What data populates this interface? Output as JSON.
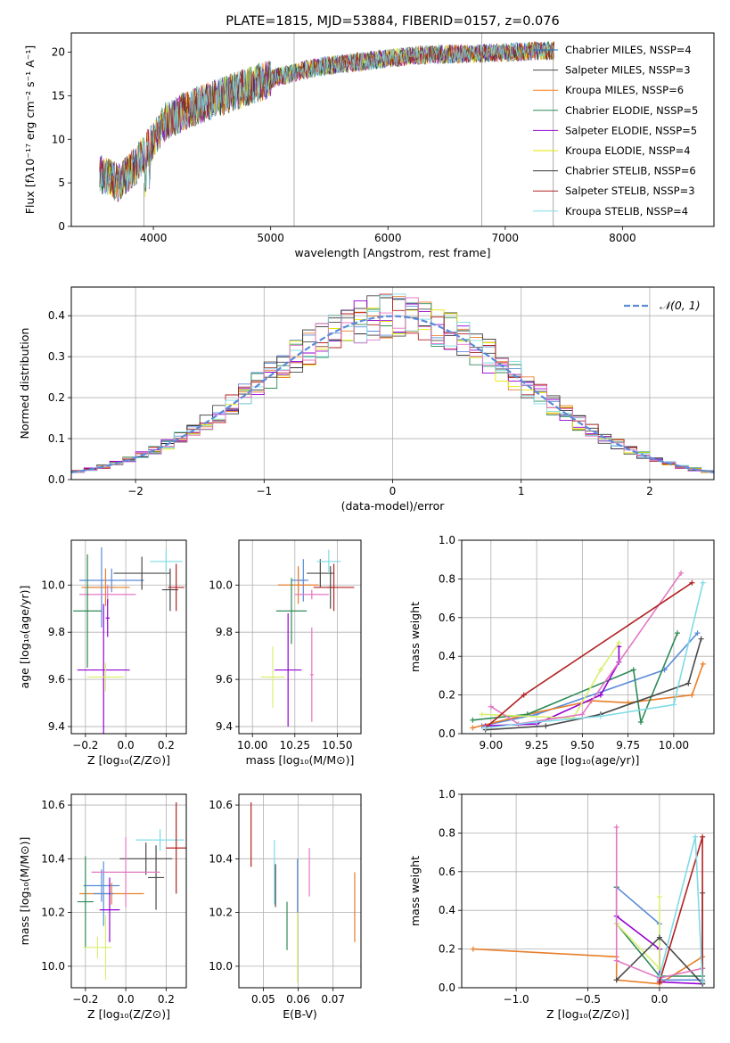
{
  "chart_data": [
    {
      "type": "line",
      "title": "PLATE=1815, MJD=53884, FIBERID=0157, z=0.076",
      "xlabel": "wavelength [Angstrom, rest frame]",
      "ylabel": "Flux [fλ10⁻¹⁷ erg cm⁻² s⁻¹ A⁻¹]",
      "xlim": [
        3300,
        8780
      ],
      "ylim": [
        0,
        22.2
      ],
      "xticks": [
        4000,
        5000,
        6000,
        7000,
        8000
      ],
      "yticks": [
        0,
        5,
        10,
        15,
        20
      ],
      "grid": false,
      "legend_position": "top-right",
      "series": [
        {
          "name": "Chabrier MILES, N_SSP=4",
          "color": "#1f77b4"
        },
        {
          "name": "Salpeter MILES, N_SSP=3",
          "color": "#4a4a4a"
        },
        {
          "name": "Kroupa MILES, N_SSP=6",
          "color": "#ff7f0e"
        },
        {
          "name": "Chabrier ELODIE, N_SSP=5",
          "color": "#2e8b57"
        },
        {
          "name": "Salpeter ELODIE, N_SSP=5",
          "color": "#9400d3"
        },
        {
          "name": "Kroupa ELODIE, N_SSP=4",
          "color": "#e6e600"
        },
        {
          "name": "Chabrier STELIB, N_SSP=6",
          "color": "#333333"
        },
        {
          "name": "Salpeter STELIB, N_SSP=3",
          "color": "#b22222"
        },
        {
          "name": "Kroupa STELIB, N_SSP=4",
          "color": "#7fdbe6"
        }
      ],
      "continuum": {
        "x": [
          3550,
          3700,
          3850,
          3950,
          4100,
          4300,
          4500,
          4700,
          4900,
          5100,
          5400,
          5700,
          6000,
          6300,
          6600,
          6900,
          7200,
          7420
        ],
        "y": [
          6,
          5,
          7,
          9,
          12,
          13.5,
          14.5,
          15.5,
          16.5,
          17.3,
          18.3,
          18.8,
          19.3,
          19.7,
          19.8,
          19.9,
          20.1,
          20.2
        ]
      }
    },
    {
      "type": "line",
      "xlabel": "(data-model)/error",
      "ylabel": "Normed distribution",
      "xlim": [
        -2.5,
        2.5
      ],
      "ylim": [
        0,
        0.47
      ],
      "xticks": [
        -2,
        -1,
        0,
        1,
        2
      ],
      "yticks": [
        0.0,
        0.1,
        0.2,
        0.3,
        0.4
      ],
      "grid": true,
      "legend_position": "top-right",
      "legend": "𝒩(0, 1)",
      "gaussian": {
        "mean": 0,
        "sigma": 1,
        "color": "#5b8bd9"
      }
    },
    {
      "type": "scatter",
      "xlabel": "Z [log₁₀(Z/Z⊙)]",
      "ylabel": "age  [log₁₀(age/yr)]",
      "xlim": [
        -0.27,
        0.3
      ],
      "ylim": [
        9.37,
        10.19
      ],
      "xticks": [
        -0.2,
        0.0,
        0.2
      ],
      "yticks": [
        9.4,
        9.6,
        9.8,
        10.0
      ],
      "grid": true,
      "points": [
        {
          "x": -0.07,
          "y": 10.02,
          "xerr": 0.16,
          "yerr": 0.05,
          "color": "#5b8bd9"
        },
        {
          "x": -0.12,
          "y": 9.99,
          "xerr": 0.07,
          "yerr": 0.17,
          "color": "#5b8bd9"
        },
        {
          "x": -0.1,
          "y": 9.99,
          "xerr": 0.12,
          "yerr": 0.08,
          "color": "#e87f2a"
        },
        {
          "x": 0.08,
          "y": 10.05,
          "xerr": 0.14,
          "yerr": 0.07,
          "color": "#4a4a4a"
        },
        {
          "x": 0.2,
          "y": 10.1,
          "xerr": 0.08,
          "yerr": 0.05,
          "color": "#7fdbe6"
        },
        {
          "x": -0.09,
          "y": 9.96,
          "xerr": 0.14,
          "yerr": 0.04,
          "color": "#e377c2"
        },
        {
          "x": 0.22,
          "y": 9.98,
          "xerr": 0.04,
          "yerr": 0.09,
          "color": "#4a4a4a"
        },
        {
          "x": 0.25,
          "y": 9.99,
          "xerr": 0.04,
          "yerr": 0.1,
          "color": "#b22222"
        },
        {
          "x": -0.19,
          "y": 9.89,
          "xerr": 0.07,
          "yerr": 0.24,
          "color": "#2e8b57"
        },
        {
          "x": -0.09,
          "y": 9.86,
          "xerr": 0.01,
          "yerr": 0.08,
          "color": "#9400d3"
        },
        {
          "x": -0.11,
          "y": 9.64,
          "xerr": 0.13,
          "yerr": 0.28,
          "color": "#9400d3"
        },
        {
          "x": -0.1,
          "y": 9.61,
          "xerr": 0.09,
          "yerr": 0.06,
          "color": "#d8f070"
        }
      ]
    },
    {
      "type": "scatter",
      "xlabel": "mass [log₁₀(M/M⊙)]",
      "ylabel": "",
      "xlim": [
        9.92,
        10.64
      ],
      "ylim": [
        9.37,
        10.19
      ],
      "xticks": [
        10.0,
        10.25,
        10.5
      ],
      "yticks": [
        9.4,
        9.6,
        9.8,
        10.0
      ],
      "grid": true,
      "points": [
        {
          "x": 10.27,
          "y": 10.02,
          "xerr": 0.04,
          "yerr": 0.05,
          "color": "#5b8bd9"
        },
        {
          "x": 10.3,
          "y": 10.02,
          "xerr": 0.03,
          "yerr": 0.09,
          "color": "#5b8bd9"
        },
        {
          "x": 10.27,
          "y": 10.0,
          "xerr": 0.12,
          "yerr": 0.08,
          "color": "#e87f2a"
        },
        {
          "x": 10.4,
          "y": 10.05,
          "xerr": 0.08,
          "yerr": 0.06,
          "color": "#4a4a4a"
        },
        {
          "x": 10.45,
          "y": 10.1,
          "xerr": 0.07,
          "yerr": 0.05,
          "color": "#7fdbe6"
        },
        {
          "x": 10.35,
          "y": 9.96,
          "xerr": 0.1,
          "yerr": 0.02,
          "color": "#e377c2"
        },
        {
          "x": 10.46,
          "y": 9.99,
          "xerr": 0.02,
          "yerr": 0.09,
          "color": "#4a4a4a"
        },
        {
          "x": 10.48,
          "y": 9.99,
          "xerr": 0.12,
          "yerr": 0.1,
          "color": "#b22222"
        },
        {
          "x": 10.23,
          "y": 9.89,
          "xerr": 0.09,
          "yerr": 0.14,
          "color": "#2e8b57"
        },
        {
          "x": 10.21,
          "y": 9.64,
          "xerr": 0.08,
          "yerr": 0.24,
          "color": "#9400d3"
        },
        {
          "x": 10.12,
          "y": 9.61,
          "xerr": 0.07,
          "yerr": 0.13,
          "color": "#d8f070"
        },
        {
          "x": 10.35,
          "y": 9.62,
          "xerr": 0.01,
          "yerr": 0.2,
          "color": "#e377c2"
        }
      ]
    },
    {
      "type": "line",
      "xlabel": "age  [log₁₀(age/yr)]",
      "ylabel": "mass weight",
      "xlim": [
        8.84,
        10.22
      ],
      "ylim": [
        0,
        1
      ],
      "xticks": [
        9.0,
        9.25,
        9.5,
        9.75,
        10.0
      ],
      "yticks": [
        0.0,
        0.2,
        0.4,
        0.6,
        0.8,
        1.0
      ],
      "grid": true,
      "series": [
        {
          "color": "#5b8bd9",
          "x": [
            8.95,
            9.25,
            9.95,
            10.13
          ],
          "y": [
            0.04,
            0.1,
            0.33,
            0.52
          ]
        },
        {
          "color": "#e87f2a",
          "x": [
            8.9,
            9.2,
            9.55,
            9.75,
            10.1,
            10.16
          ],
          "y": [
            0.03,
            0.1,
            0.17,
            0.16,
            0.2,
            0.36
          ]
        },
        {
          "color": "#2e8b57",
          "x": [
            8.9,
            9.2,
            9.78,
            9.82,
            10.02
          ],
          "y": [
            0.07,
            0.1,
            0.33,
            0.06,
            0.52
          ]
        },
        {
          "color": "#9400d3",
          "x": [
            8.97,
            9.25,
            9.6,
            9.7,
            9.7
          ],
          "y": [
            0.04,
            0.05,
            0.2,
            0.37,
            0.45
          ]
        },
        {
          "color": "#d8f070",
          "x": [
            8.95,
            9.45,
            9.6,
            9.7
          ],
          "y": [
            0.1,
            0.08,
            0.33,
            0.47
          ]
        },
        {
          "color": "#4a4a4a",
          "x": [
            8.97,
            9.3,
            9.6,
            10.08,
            10.15
          ],
          "y": [
            0.02,
            0.04,
            0.1,
            0.26,
            0.49
          ]
        },
        {
          "color": "#e377c2",
          "x": [
            9.0,
            9.15,
            9.5,
            10.04
          ],
          "y": [
            0.14,
            0.05,
            0.1,
            0.83
          ]
        },
        {
          "color": "#b22222",
          "x": [
            8.97,
            9.18,
            10.1
          ],
          "y": [
            0.03,
            0.2,
            0.78
          ]
        },
        {
          "color": "#7fdbe6",
          "x": [
            8.97,
            9.25,
            9.6,
            10.0,
            10.16
          ],
          "y": [
            0.03,
            0.06,
            0.09,
            0.15,
            0.78
          ]
        }
      ]
    },
    {
      "type": "scatter",
      "xlabel": "Z [log₁₀(Z/Z⊙)]",
      "ylabel": "mass [log₁₀(M/M⊙)]",
      "xlim": [
        -0.27,
        0.3
      ],
      "ylim": [
        9.92,
        10.64
      ],
      "xticks": [
        -0.2,
        0.0,
        0.2
      ],
      "yticks": [
        10.0,
        10.2,
        10.4,
        10.6
      ],
      "grid": true,
      "points": [
        {
          "x": -0.12,
          "y": 10.3,
          "xerr": 0.09,
          "yerr": 0.06,
          "color": "#5b8bd9"
        },
        {
          "x": -0.07,
          "y": 10.27,
          "xerr": 0.16,
          "yerr": 0.04,
          "color": "#e87f2a"
        },
        {
          "x": -0.11,
          "y": 10.27,
          "xerr": 0.05,
          "yerr": 0.12,
          "color": "#5b8bd9"
        },
        {
          "x": 0.1,
          "y": 10.4,
          "xerr": 0.13,
          "yerr": 0.06,
          "color": "#4a4a4a"
        },
        {
          "x": 0.15,
          "y": 10.33,
          "xerr": 0.04,
          "yerr": 0.12,
          "color": "#4a4a4a"
        },
        {
          "x": 0.17,
          "y": 10.47,
          "xerr": 0.12,
          "yerr": 0.04,
          "color": "#7fdbe6"
        },
        {
          "x": 0.25,
          "y": 10.44,
          "xerr": 0.05,
          "yerr": 0.17,
          "color": "#b22222"
        },
        {
          "x": 0.0,
          "y": 10.35,
          "xerr": 0.17,
          "yerr": 0.13,
          "color": "#e377c2"
        },
        {
          "x": -0.2,
          "y": 10.24,
          "xerr": 0.04,
          "yerr": 0.17,
          "color": "#2e8b57"
        },
        {
          "x": -0.08,
          "y": 10.21,
          "xerr": 0.05,
          "yerr": 0.12,
          "color": "#9400d3"
        },
        {
          "x": -0.14,
          "y": 10.07,
          "xerr": 0.07,
          "yerr": 0.04,
          "color": "#d8f070"
        },
        {
          "x": -0.1,
          "y": 10.07,
          "xerr": 0.01,
          "yerr": 0.12,
          "color": "#d8f070"
        }
      ]
    },
    {
      "type": "scatter",
      "xlabel": "E(B-V)",
      "ylabel": "",
      "xlim": [
        0.043,
        0.078
      ],
      "ylim": [
        9.92,
        10.64
      ],
      "xticks": [
        0.05,
        0.06,
        0.07
      ],
      "yticks": [
        10.0,
        10.2,
        10.4,
        10.6
      ],
      "grid": true,
      "points": [
        {
          "x": 0.0465,
          "y": 10.49,
          "xerr": 0,
          "yerr": 0.12,
          "color": "#b22222"
        },
        {
          "x": 0.0532,
          "y": 10.35,
          "xerr": 0,
          "yerr": 0.12,
          "color": "#7fdbe6"
        },
        {
          "x": 0.0535,
          "y": 10.3,
          "xerr": 0,
          "yerr": 0.08,
          "color": "#4a4a4a"
        },
        {
          "x": 0.0568,
          "y": 10.15,
          "xerr": 0,
          "yerr": 0.09,
          "color": "#2e8b57"
        },
        {
          "x": 0.0598,
          "y": 10.3,
          "xerr": 0,
          "yerr": 0.1,
          "color": "#5b8bd9"
        },
        {
          "x": 0.0598,
          "y": 10.07,
          "xerr": 0,
          "yerr": 0.13,
          "color": "#d8f070"
        },
        {
          "x": 0.0632,
          "y": 10.35,
          "xerr": 0,
          "yerr": 0.09,
          "color": "#e377c2"
        },
        {
          "x": 0.0762,
          "y": 10.22,
          "xerr": 0,
          "yerr": 0.13,
          "color": "#e87f2a"
        }
      ]
    },
    {
      "type": "line",
      "xlabel": "Z [log₁₀(Z/Z⊙)]",
      "ylabel": "mass weight",
      "xlim": [
        -1.38,
        0.38
      ],
      "ylim": [
        0,
        1
      ],
      "xticks": [
        -1.0,
        -0.5,
        0.0
      ],
      "yticks": [
        0.0,
        0.2,
        0.4,
        0.6,
        0.8,
        1.0
      ],
      "grid": true,
      "series": [
        {
          "color": "#e87f2a",
          "x": [
            -1.3,
            -0.3,
            -0.3,
            0.0,
            0.3,
            0.3
          ],
          "y": [
            0.2,
            0.16,
            0.04,
            0.02,
            0.16,
            0.03
          ]
        },
        {
          "color": "#5b8bd9",
          "x": [
            -0.3,
            0.0,
            0.0,
            0.3
          ],
          "y": [
            0.52,
            0.33,
            0.04,
            0.04
          ]
        },
        {
          "color": "#2e8b57",
          "x": [
            -0.3,
            -0.3,
            0.0,
            0.3
          ],
          "y": [
            0.52,
            0.33,
            0.06,
            0.06
          ]
        },
        {
          "color": "#9400d3",
          "x": [
            -0.3,
            0.0,
            0.0,
            0.3
          ],
          "y": [
            0.37,
            0.2,
            0.03,
            0.02
          ]
        },
        {
          "color": "#d8f070",
          "x": [
            -0.3,
            0.0,
            0.0
          ],
          "y": [
            0.33,
            0.1,
            0.47
          ]
        },
        {
          "color": "#4a4a4a",
          "x": [
            -0.3,
            0.0,
            0.3,
            0.3,
            0.3
          ],
          "y": [
            0.04,
            0.26,
            0.02,
            0.49,
            0.1
          ]
        },
        {
          "color": "#e377c2",
          "x": [
            -0.3,
            -0.3,
            0.0,
            0.3
          ],
          "y": [
            0.83,
            0.14,
            0.05,
            0.1
          ]
        },
        {
          "color": "#b22222",
          "x": [
            0.0,
            0.3,
            0.3
          ],
          "y": [
            0.03,
            0.78,
            0.03
          ]
        },
        {
          "color": "#7fdbe6",
          "x": [
            0.0,
            0.25,
            0.3
          ],
          "y": [
            0.06,
            0.78,
            0.03
          ]
        }
      ]
    }
  ]
}
